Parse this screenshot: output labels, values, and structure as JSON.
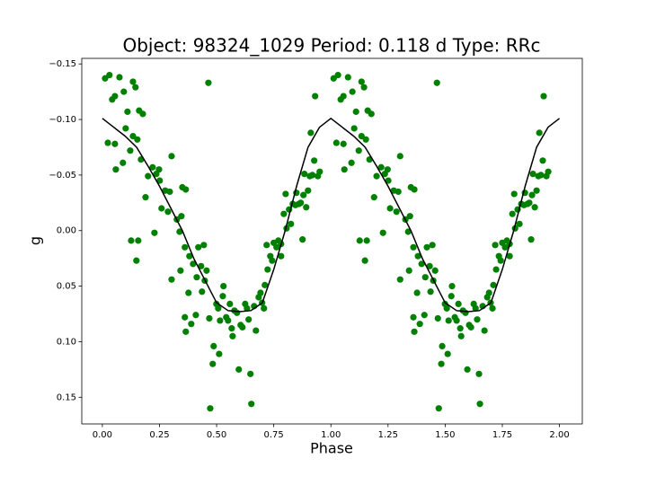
{
  "chart_data": {
    "type": "scatter",
    "title": "Object: 98324_1029    Period: 0.118 d    Type: RRc",
    "x_label": "Phase",
    "y_label": "g",
    "xlim": [
      -0.09,
      2.1
    ],
    "ylim": [
      0.174,
      -0.155
    ],
    "xticks": [
      {
        "value": 0,
        "label": "0.00"
      },
      {
        "value": 0.25,
        "label": "0.25"
      },
      {
        "value": 0.5,
        "label": "0.50"
      },
      {
        "value": 0.75,
        "label": "0.75"
      },
      {
        "value": 1,
        "label": "1.00"
      },
      {
        "value": 1.25,
        "label": "1.25"
      },
      {
        "value": 1.5,
        "label": "1.50"
      },
      {
        "value": 1.75,
        "label": "1.75"
      },
      {
        "value": 2,
        "label": "2.00"
      }
    ],
    "yticks": [
      {
        "value": -0.15,
        "label": "−0.15"
      },
      {
        "value": -0.1,
        "label": "−0.10"
      },
      {
        "value": -0.05,
        "label": "−0.05"
      },
      {
        "value": 0,
        "label": "0.00"
      },
      {
        "value": 0.05,
        "label": "0.05"
      },
      {
        "value": 0.1,
        "label": "0.10"
      },
      {
        "value": 0.15,
        "label": "0.15"
      }
    ],
    "series": [
      {
        "type": "scatter",
        "color": "#008000",
        "x": [
          0.012,
          0.031,
          0.043,
          0.055,
          0.075,
          0.094,
          0.024,
          0.055,
          0.059,
          0.09,
          0.102,
          0.11,
          0.134,
          0.145,
          0.161,
          0.177,
          0.134,
          0.153,
          0.122,
          0.169,
          0.126,
          0.157,
          0.149,
          0.189,
          0.2,
          0.22,
          0.236,
          0.248,
          0.251,
          0.228,
          0.259,
          0.275,
          0.295,
          0.303,
          0.287,
          0.303,
          0.326,
          0.338,
          0.346,
          0.342,
          0.35,
          0.365,
          0.361,
          0.381,
          0.377,
          0.361,
          0.365,
          0.389,
          0.409,
          0.397,
          0.413,
          0.42,
          0.432,
          0.436,
          0.444,
          0.448,
          0.456,
          0.464,
          0.468,
          0.472,
          0.483,
          0.487,
          0.499,
          0.507,
          0.515,
          0.511,
          0.527,
          0.53,
          0.542,
          0.55,
          0.558,
          0.566,
          0.57,
          0.578,
          0.589,
          0.597,
          0.605,
          0.613,
          0.625,
          0.633,
          0.64,
          0.648,
          0.652,
          0.664,
          0.672,
          0.684,
          0.692,
          0.699,
          0.707,
          0.711,
          0.719,
          0.723,
          0.735,
          0.743,
          0.75,
          0.762,
          0.77,
          0.782,
          0.782,
          0.794,
          0.802,
          0.806,
          0.817,
          0.825,
          0.833,
          0.845,
          0.849,
          0.86,
          0.868,
          0.876,
          0.88,
          0.884,
          0.892,
          0.9,
          0.908,
          0.912,
          0.919,
          0.927,
          0.931,
          0.943,
          0.951,
          1.012,
          1.031,
          1.043,
          1.055,
          1.075,
          1.094,
          1.024,
          1.055,
          1.059,
          1.09,
          1.102,
          1.11,
          1.134,
          1.145,
          1.161,
          1.177,
          1.134,
          1.153,
          1.122,
          1.169,
          1.126,
          1.157,
          1.149,
          1.189,
          1.2,
          1.22,
          1.236,
          1.248,
          1.251,
          1.228,
          1.259,
          1.275,
          1.295,
          1.303,
          1.287,
          1.303,
          1.326,
          1.338,
          1.346,
          1.342,
          1.35,
          1.365,
          1.361,
          1.381,
          1.377,
          1.361,
          1.365,
          1.389,
          1.409,
          1.397,
          1.413,
          1.42,
          1.432,
          1.436,
          1.444,
          1.448,
          1.456,
          1.464,
          1.468,
          1.472,
          1.483,
          1.487,
          1.499,
          1.507,
          1.515,
          1.511,
          1.527,
          1.53,
          1.542,
          1.55,
          1.558,
          1.566,
          1.57,
          1.578,
          1.589,
          1.597,
          1.605,
          1.613,
          1.625,
          1.633,
          1.64,
          1.648,
          1.652,
          1.664,
          1.672,
          1.684,
          1.692,
          1.699,
          1.707,
          1.711,
          1.719,
          1.723,
          1.735,
          1.743,
          1.75,
          1.762,
          1.77,
          1.782,
          1.782,
          1.794,
          1.802,
          1.806,
          1.817,
          1.825,
          1.833,
          1.845,
          1.849,
          1.86,
          1.868,
          1.876,
          1.88,
          1.884,
          1.892,
          1.9,
          1.908,
          1.912,
          1.919,
          1.927,
          1.931,
          1.943,
          1.951
        ],
        "values": [
          -0.137,
          -0.14,
          -0.118,
          -0.121,
          -0.138,
          -0.125,
          -0.079,
          -0.078,
          -0.055,
          -0.061,
          -0.092,
          -0.107,
          -0.134,
          -0.129,
          -0.108,
          -0.105,
          -0.085,
          -0.082,
          -0.072,
          -0.064,
          0.009,
          0.009,
          0.027,
          -0.03,
          -0.049,
          -0.057,
          -0.051,
          -0.055,
          -0.045,
          0.002,
          -0.02,
          -0.036,
          -0.035,
          -0.067,
          -0.017,
          0.044,
          -0.01,
          0.001,
          -0.013,
          0.036,
          -0.039,
          -0.037,
          0.015,
          0.023,
          0.056,
          0.078,
          0.091,
          0.084,
          0.076,
          0.03,
          0.042,
          0.015,
          0.032,
          0.055,
          0.013,
          0.045,
          0.036,
          -0.133,
          0.079,
          0.16,
          0.12,
          0.104,
          0.066,
          0.07,
          0.081,
          0.111,
          0.059,
          0.05,
          0.078,
          0.081,
          0.066,
          0.088,
          0.095,
          0.072,
          0.074,
          0.125,
          0.085,
          0.087,
          0.066,
          0.07,
          0.08,
          0.129,
          0.156,
          0.068,
          0.09,
          0.06,
          0.056,
          0.065,
          0.07,
          0.049,
          0.013,
          0.035,
          0.023,
          0.027,
          0.011,
          0.015,
          0.009,
          0.023,
          0.012,
          -0.015,
          -0.033,
          -0.002,
          -0.019,
          -0.006,
          -0.024,
          -0.023,
          -0.034,
          -0.024,
          -0.025,
          0.008,
          -0.032,
          -0.051,
          -0.021,
          -0.036,
          -0.049,
          -0.088,
          -0.05,
          -0.063,
          -0.121,
          -0.049,
          -0.053,
          -0.137,
          -0.14,
          -0.118,
          -0.121,
          -0.138,
          -0.125,
          -0.079,
          -0.078,
          -0.055,
          -0.061,
          -0.092,
          -0.107,
          -0.134,
          -0.129,
          -0.108,
          -0.105,
          -0.085,
          -0.082,
          -0.072,
          -0.064,
          0.009,
          0.009,
          0.027,
          -0.03,
          -0.049,
          -0.057,
          -0.051,
          -0.055,
          -0.045,
          0.002,
          -0.02,
          -0.036,
          -0.035,
          -0.067,
          -0.017,
          0.044,
          -0.01,
          0.001,
          -0.013,
          0.036,
          -0.039,
          -0.037,
          0.015,
          0.023,
          0.056,
          0.078,
          0.091,
          0.084,
          0.076,
          0.03,
          0.042,
          0.015,
          0.032,
          0.055,
          0.013,
          0.045,
          0.036,
          -0.133,
          0.079,
          0.16,
          0.12,
          0.104,
          0.066,
          0.07,
          0.081,
          0.111,
          0.059,
          0.05,
          0.078,
          0.081,
          0.066,
          0.088,
          0.095,
          0.072,
          0.074,
          0.125,
          0.085,
          0.087,
          0.066,
          0.07,
          0.08,
          0.129,
          0.156,
          0.068,
          0.09,
          0.06,
          0.056,
          0.065,
          0.07,
          0.049,
          0.013,
          0.035,
          0.023,
          0.027,
          0.011,
          0.015,
          0.009,
          0.023,
          0.012,
          -0.015,
          -0.033,
          -0.002,
          -0.019,
          -0.006,
          -0.024,
          -0.023,
          -0.034,
          -0.024,
          -0.025,
          0.008,
          -0.032,
          -0.051,
          -0.021,
          -0.036,
          -0.049,
          -0.088,
          -0.05,
          -0.063,
          -0.121,
          -0.049,
          -0.053
        ]
      },
      {
        "type": "line",
        "color": "#000000",
        "x": [
          0,
          0.05,
          0.1,
          0.15,
          0.2,
          0.25,
          0.3,
          0.35,
          0.4,
          0.45,
          0.5,
          0.55,
          0.6,
          0.65,
          0.7,
          0.75,
          0.8,
          0.85,
          0.9,
          0.95,
          1,
          1.05,
          1.1,
          1.15,
          1.2,
          1.25,
          1.3,
          1.35,
          1.4,
          1.45,
          1.5,
          1.55,
          1.6,
          1.65,
          1.7,
          1.75,
          1.8,
          1.85,
          1.9,
          1.95,
          2
        ],
        "values": [
          -0.101,
          -0.093,
          -0.085,
          -0.075,
          -0.058,
          -0.04,
          -0.02,
          0,
          0.025,
          0.045,
          0.065,
          0.072,
          0.073,
          0.072,
          0.065,
          0.035,
          0,
          -0.04,
          -0.075,
          -0.093,
          -0.101,
          -0.093,
          -0.085,
          -0.075,
          -0.058,
          -0.04,
          -0.02,
          0,
          0.025,
          0.045,
          0.065,
          0.072,
          0.073,
          0.072,
          0.065,
          0.035,
          0,
          -0.04,
          -0.075,
          -0.093,
          -0.101
        ]
      }
    ]
  }
}
